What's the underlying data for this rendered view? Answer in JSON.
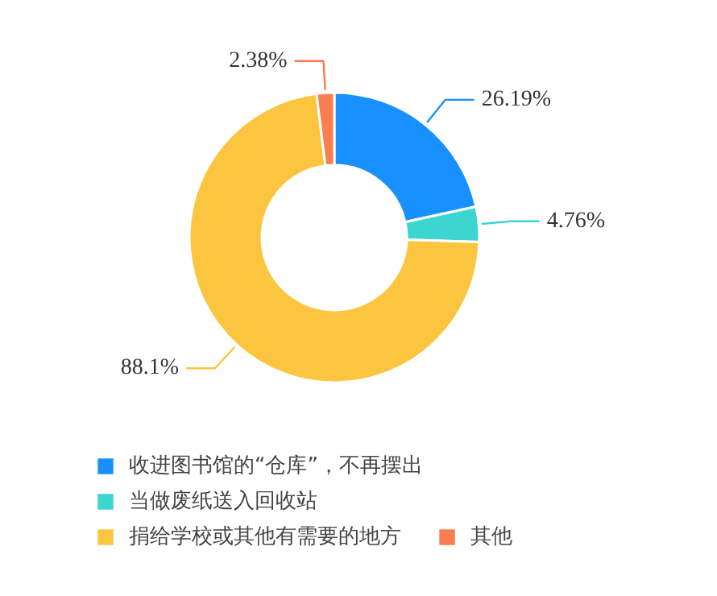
{
  "chart_data": {
    "type": "donut",
    "categories": [
      "收进图书馆的“仓库”，不再摆出",
      "当做废纸送入回收站",
      "捐给学校或其他有需要的地方",
      "其他"
    ],
    "values": [
      26.19,
      4.76,
      88.1,
      2.38
    ],
    "colors": [
      "#1890ff",
      "#3dd5cf",
      "#fcc540",
      "#fa7e4f"
    ],
    "value_labels": [
      "26.19%",
      "4.76%",
      "88.1%",
      "2.38%"
    ],
    "legend": "bottom"
  }
}
